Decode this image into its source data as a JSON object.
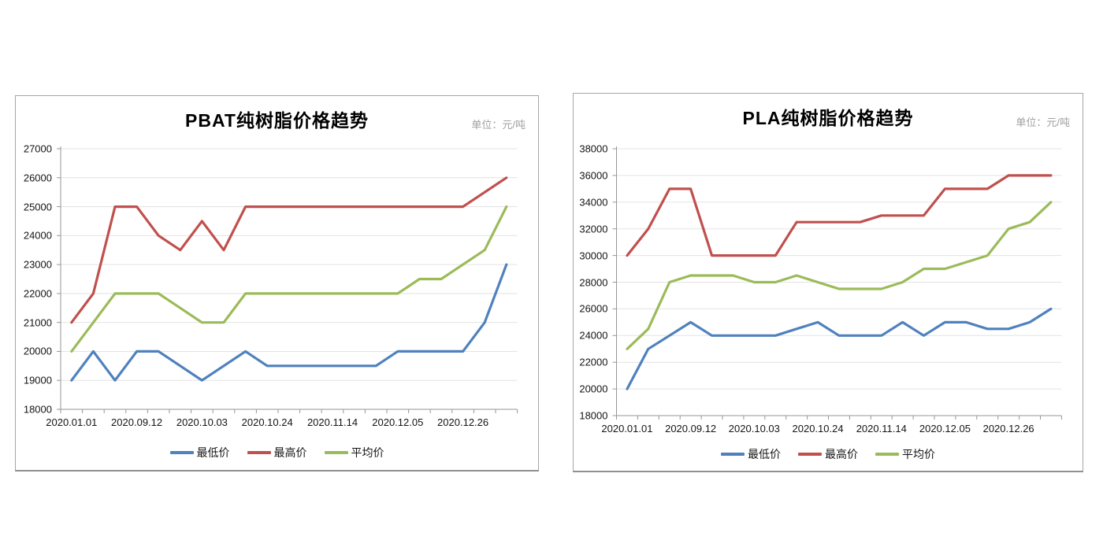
{
  "chart_data": [
    {
      "type": "line",
      "title": "PBAT纯树脂价格趋势",
      "unit_label": "单位：元/吨",
      "ylim": [
        18000,
        27000
      ],
      "y_step": 1000,
      "y_tick_labels": [
        "27000",
        "26000",
        "25000",
        "24000",
        "23000",
        "22000",
        "21000",
        "20000",
        "19000",
        "18000"
      ],
      "x_tick_labels": [
        "2020.01.01",
        "2020.09.12",
        "2020.10.03",
        "2020.10.24",
        "2020.11.14",
        "2020.12.05",
        "2020.12.26"
      ],
      "x_label_every": 3,
      "n_points": 21,
      "grid": "horizontal-light",
      "legend_position": "bottom",
      "series": [
        {
          "name": "最低价",
          "color": "#4F81BD",
          "values": [
            19000,
            20000,
            19000,
            20000,
            20000,
            19500,
            19000,
            19500,
            20000,
            19500,
            19500,
            19500,
            19500,
            19500,
            19500,
            20000,
            20000,
            20000,
            20000,
            21000,
            23000
          ]
        },
        {
          "name": "最高价",
          "color": "#C0504D",
          "values": [
            21000,
            22000,
            25000,
            25000,
            24000,
            23500,
            24500,
            23500,
            25000,
            25000,
            25000,
            25000,
            25000,
            25000,
            25000,
            25000,
            25000,
            25000,
            25000,
            25500,
            26000
          ]
        },
        {
          "name": "平均价",
          "color": "#9BBB59",
          "values": [
            20000,
            21000,
            22000,
            22000,
            22000,
            21500,
            21000,
            21000,
            22000,
            22000,
            22000,
            22000,
            22000,
            22000,
            22000,
            22000,
            22500,
            22500,
            23000,
            23500,
            25000
          ]
        }
      ]
    },
    {
      "type": "line",
      "title": "PLA纯树脂价格趋势",
      "unit_label": "单位：元/吨",
      "ylim": [
        18000,
        38000
      ],
      "y_step": 2000,
      "y_tick_labels": [
        "38000",
        "36000",
        "34000",
        "32000",
        "30000",
        "28000",
        "26000",
        "24000",
        "22000",
        "20000",
        "18000"
      ],
      "x_tick_labels": [
        "2020.01.01",
        "2020.09.12",
        "2020.10.03",
        "2020.10.24",
        "2020.11.14",
        "2020.12.05",
        "2020.12.26"
      ],
      "x_label_every": 3,
      "n_points": 21,
      "grid": "horizontal-light",
      "legend_position": "bottom",
      "series": [
        {
          "name": "最低价",
          "color": "#4F81BD",
          "values": [
            20000,
            23000,
            24000,
            25000,
            24000,
            24000,
            24000,
            24000,
            24500,
            25000,
            24000,
            24000,
            24000,
            25000,
            24000,
            25000,
            25000,
            24500,
            24500,
            25000,
            26000
          ]
        },
        {
          "name": "最高价",
          "color": "#C0504D",
          "values": [
            30000,
            32000,
            35000,
            35000,
            30000,
            30000,
            30000,
            30000,
            32500,
            32500,
            32500,
            32500,
            33000,
            33000,
            33000,
            35000,
            35000,
            35000,
            36000,
            36000,
            36000
          ]
        },
        {
          "name": "平均价",
          "color": "#9BBB59",
          "values": [
            23000,
            24500,
            28000,
            28500,
            28500,
            28500,
            28000,
            28000,
            28500,
            28000,
            27500,
            27500,
            27500,
            28000,
            29000,
            29000,
            29500,
            30000,
            32000,
            32500,
            34000
          ]
        }
      ]
    }
  ],
  "style": {
    "axis_color": "#969696",
    "grid_color": "#e3e3e3",
    "tick_label_color": "#141414",
    "title_color": "#000000",
    "unit_label_color": "#a0a0a0",
    "panel_border_color": "#a6a6a6",
    "background": "#ffffff"
  }
}
